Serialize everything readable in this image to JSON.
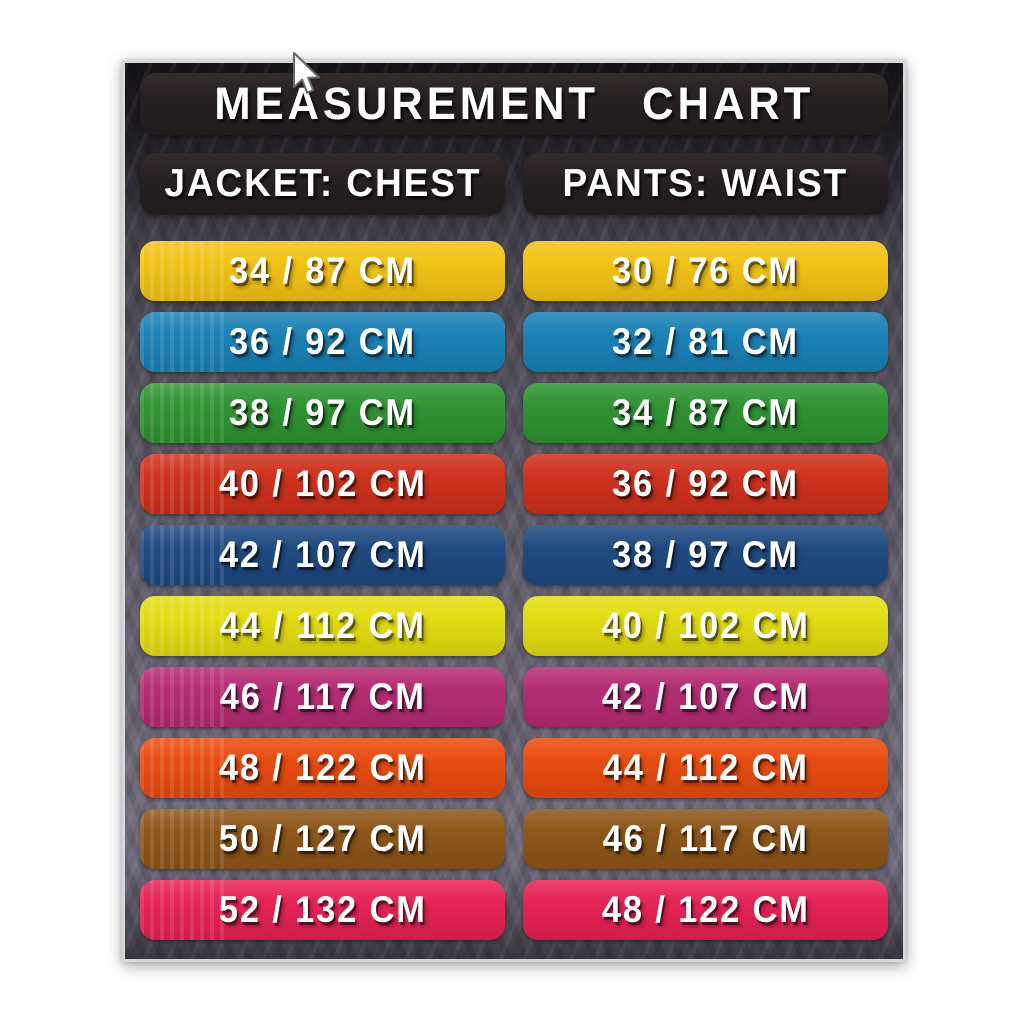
{
  "header": {
    "title": "MEASUREMENT CHART"
  },
  "columns": [
    {
      "label": "JACKET: CHEST"
    },
    {
      "label": "PANTS: WAIST"
    }
  ],
  "rows": [
    {
      "jacket": "34 / 87 CM",
      "pants": "30 / 76 CM",
      "color": "#F2C214"
    },
    {
      "jacket": "36 / 92 CM",
      "pants": "32 / 81 CM",
      "color": "#1980B5"
    },
    {
      "jacket": "38 / 97 CM",
      "pants": "34 / 87 CM",
      "color": "#2E9231"
    },
    {
      "jacket": "40 / 102 CM",
      "pants": "36 / 92 CM",
      "color": "#CE2F1B"
    },
    {
      "jacket": "42 / 107 CM",
      "pants": "38 / 97 CM",
      "color": "#1D4880"
    },
    {
      "jacket": "44 / 112 CM",
      "pants": "40 / 102 CM",
      "color": "#E2DC10"
    },
    {
      "jacket": "46 / 117 CM",
      "pants": "42 / 107 CM",
      "color": "#B42A72"
    },
    {
      "jacket": "48 / 122 CM",
      "pants": "44 / 112 CM",
      "color": "#E84A0E"
    },
    {
      "jacket": "50 / 127 CM",
      "pants": "46 / 117 CM",
      "color": "#8C5418"
    },
    {
      "jacket": "52 / 132 CM",
      "pants": "48 / 122 CM",
      "color": "#E62052"
    }
  ],
  "cursor": {
    "icon": "mouse-pointer"
  },
  "chart_data": {
    "type": "table",
    "title": "MEASUREMENT CHART",
    "columns": [
      "JACKET: CHEST",
      "PANTS: WAIST"
    ],
    "rows": [
      [
        "34 / 87 CM",
        "30 / 76 CM"
      ],
      [
        "36 / 92 CM",
        "32 / 81 CM"
      ],
      [
        "38 / 97 CM",
        "34 / 87 CM"
      ],
      [
        "40 / 102 CM",
        "36 / 92 CM"
      ],
      [
        "42 / 107 CM",
        "38 / 97 CM"
      ],
      [
        "44 / 112 CM",
        "40 / 102 CM"
      ],
      [
        "46 / 117 CM",
        "42 / 107 CM"
      ],
      [
        "48 / 122 CM",
        "44 / 112 CM"
      ],
      [
        "50 / 127 CM",
        "46 / 117 CM"
      ],
      [
        "52 / 132 CM",
        "48 / 122 CM"
      ]
    ],
    "row_colors": [
      "#F2C214",
      "#1980B5",
      "#2E9231",
      "#CE2F1B",
      "#1D4880",
      "#E2DC10",
      "#B42A72",
      "#E84A0E",
      "#8C5418",
      "#E62052"
    ],
    "legend_position": "none",
    "grid": false
  }
}
